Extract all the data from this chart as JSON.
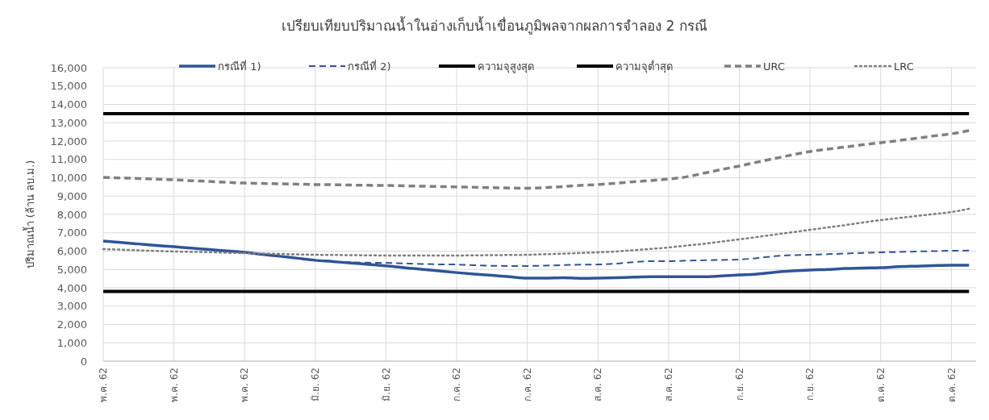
{
  "chart_data": {
    "type": "line",
    "title": "เปรียบเทียบปริมาณน้ำในอ่างเก็บน้ำเขื่อนภูมิพลจากผลการจำลอง 2 กรณี",
    "ylabel": "ปริมาณน้ำ (ล้าน ลบ.ม.)",
    "categories": [
      "พ.ค. 62",
      null,
      null,
      null,
      "พ.ค. 62",
      null,
      null,
      null,
      "พ.ค. 62",
      null,
      null,
      null,
      "มิ.ย. 62",
      null,
      null,
      null,
      "มิ.ย. 62",
      null,
      null,
      null,
      "ก.ค. 62",
      null,
      null,
      null,
      "ก.ค. 62",
      null,
      null,
      null,
      "ส.ค. 62",
      null,
      null,
      null,
      "ส.ค. 62",
      null,
      null,
      null,
      "ก.ย. 62",
      null,
      null,
      null,
      "ก.ย. 62",
      null,
      null,
      null,
      "ต.ค. 62",
      null,
      null,
      null,
      "ต.ค. 62",
      null
    ],
    "ylim": [
      0,
      16000
    ],
    "yticks": [
      {
        "value": 0,
        "label": "0"
      },
      {
        "value": 1000,
        "label": "1,000"
      },
      {
        "value": 2000,
        "label": "2,000"
      },
      {
        "value": 3000,
        "label": "3,000"
      },
      {
        "value": 4000,
        "label": "4,000"
      },
      {
        "value": 5000,
        "label": "5,000"
      },
      {
        "value": 6000,
        "label": "6,000"
      },
      {
        "value": 7000,
        "label": "7,000"
      },
      {
        "value": 8000,
        "label": "8,000"
      },
      {
        "value": 9000,
        "label": "9,000"
      },
      {
        "value": 10000,
        "label": "10,000"
      },
      {
        "value": 11000,
        "label": "11,000"
      },
      {
        "value": 12000,
        "label": "12,000"
      },
      {
        "value": 13000,
        "label": "13,000"
      },
      {
        "value": 14000,
        "label": "14,000"
      },
      {
        "value": 15000,
        "label": "15,000"
      },
      {
        "value": 16000,
        "label": "16,000"
      }
    ],
    "grid": true,
    "legend": "top",
    "series": [
      {
        "name": "กรณีที่ 1)",
        "color": "#2f5597",
        "line_style": "solid",
        "values": [
          6550,
          6470,
          6390,
          6310,
          6240,
          6160,
          6090,
          6010,
          5930,
          5820,
          5720,
          5610,
          5500,
          5430,
          5350,
          5280,
          5200,
          5100,
          5010,
          4920,
          4830,
          4750,
          4680,
          4600,
          4530,
          4530,
          4550,
          4520,
          4530,
          4550,
          4580,
          4600,
          4600,
          4600,
          4600,
          4650,
          4700,
          4750,
          4850,
          4920,
          4970,
          5000,
          5050,
          5080,
          5100,
          5150,
          5180,
          5210,
          5230,
          5230
        ]
      },
      {
        "name": "กรณีที่ 2)",
        "color": "#2f5597",
        "line_style": "dashed",
        "values": [
          6550,
          6470,
          6390,
          6310,
          6240,
          6160,
          6090,
          6010,
          5930,
          5820,
          5720,
          5610,
          5500,
          5430,
          5390,
          5370,
          5360,
          5330,
          5300,
          5280,
          5270,
          5230,
          5200,
          5190,
          5190,
          5210,
          5240,
          5260,
          5270,
          5320,
          5400,
          5450,
          5450,
          5480,
          5500,
          5520,
          5540,
          5620,
          5720,
          5780,
          5800,
          5830,
          5870,
          5900,
          5930,
          5950,
          5980,
          6000,
          6020,
          6030
        ]
      },
      {
        "name": "ความจุสูงสุด",
        "color": "#000000",
        "line_style": "solid",
        "values": [
          13500,
          13500,
          13500,
          13500,
          13500,
          13500,
          13500,
          13500,
          13500,
          13500,
          13500,
          13500,
          13500,
          13500,
          13500,
          13500,
          13500,
          13500,
          13500,
          13500,
          13500,
          13500,
          13500,
          13500,
          13500,
          13500,
          13500,
          13500,
          13500,
          13500,
          13500,
          13500,
          13500,
          13500,
          13500,
          13500,
          13500,
          13500,
          13500,
          13500,
          13500,
          13500,
          13500,
          13500,
          13500,
          13500,
          13500,
          13500,
          13500,
          13500
        ]
      },
      {
        "name": "ความจุต่ำสุด",
        "color": "#000000",
        "line_style": "solid",
        "values": [
          3800,
          3800,
          3800,
          3800,
          3800,
          3800,
          3800,
          3800,
          3800,
          3800,
          3800,
          3800,
          3800,
          3800,
          3800,
          3800,
          3800,
          3800,
          3800,
          3800,
          3800,
          3800,
          3800,
          3800,
          3800,
          3800,
          3800,
          3800,
          3800,
          3800,
          3800,
          3800,
          3800,
          3800,
          3800,
          3800,
          3800,
          3800,
          3800,
          3800,
          3800,
          3800,
          3800,
          3800,
          3800,
          3800,
          3800,
          3800,
          3800,
          3800
        ]
      },
      {
        "name": "URC",
        "color": "#808080",
        "line_style": "dashed",
        "values": [
          10020,
          9990,
          9960,
          9920,
          9890,
          9840,
          9800,
          9750,
          9710,
          9690,
          9670,
          9650,
          9630,
          9620,
          9600,
          9590,
          9580,
          9560,
          9540,
          9520,
          9500,
          9480,
          9460,
          9440,
          9430,
          9460,
          9520,
          9580,
          9630,
          9700,
          9780,
          9850,
          9930,
          10050,
          10250,
          10450,
          10640,
          10850,
          11050,
          11250,
          11430,
          11560,
          11680,
          11800,
          11910,
          12030,
          12150,
          12280,
          12400,
          12570
        ]
      },
      {
        "name": "LRC",
        "color": "#808080",
        "line_style": "dotted",
        "values": [
          6110,
          6080,
          6040,
          6010,
          5980,
          5960,
          5940,
          5910,
          5890,
          5870,
          5850,
          5820,
          5800,
          5790,
          5780,
          5770,
          5760,
          5760,
          5760,
          5760,
          5760,
          5770,
          5780,
          5790,
          5800,
          5830,
          5860,
          5900,
          5930,
          5980,
          6050,
          6120,
          6200,
          6300,
          6400,
          6520,
          6640,
          6770,
          6900,
          7030,
          7160,
          7290,
          7420,
          7560,
          7690,
          7800,
          7910,
          8020,
          8130,
          8310
        ]
      }
    ]
  }
}
